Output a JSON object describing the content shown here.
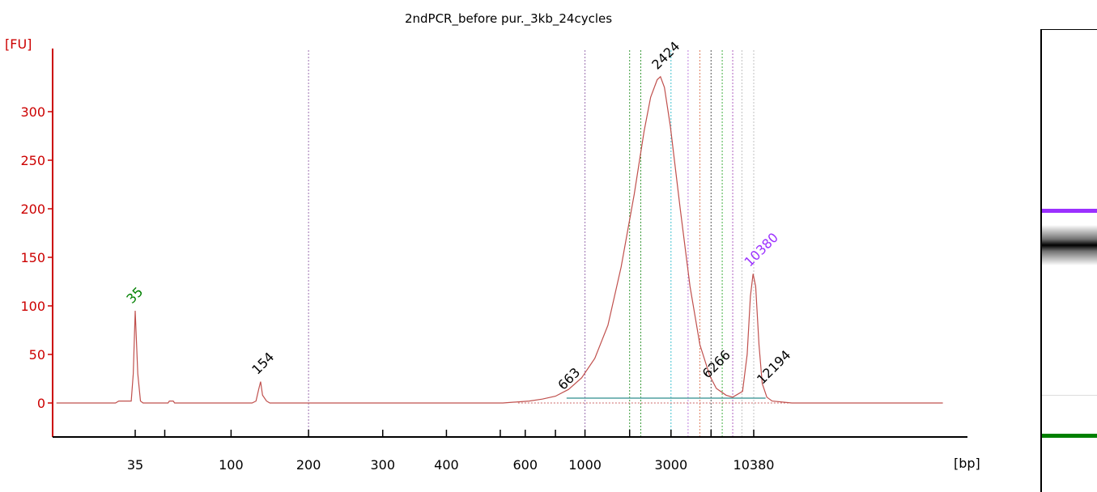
{
  "chart_data": {
    "type": "line",
    "title": "2ndPCR_before pur._3kb_24cycles",
    "ylabel": "[FU]",
    "xlabel": "[bp]",
    "ylim": [
      -35,
      365
    ],
    "yticks": [
      0,
      50,
      100,
      150,
      200,
      250,
      300
    ],
    "xticks": [
      {
        "label": "35",
        "t": 0.0
      },
      {
        "label": "",
        "t": 0.045
      },
      {
        "label": "100",
        "t": 0.146
      },
      {
        "label": "200",
        "t": 0.264
      },
      {
        "label": "300",
        "t": 0.377
      },
      {
        "label": "400",
        "t": 0.474
      },
      {
        "label": "",
        "t": 0.556
      },
      {
        "label": "600",
        "t": 0.594
      },
      {
        "label": "",
        "t": 0.64
      },
      {
        "label": "1000",
        "t": 0.685
      },
      {
        "label": "",
        "t": 0.753
      },
      {
        "label": "3000",
        "t": 0.816
      },
      {
        "label": "",
        "t": 0.877
      },
      {
        "label": "10380",
        "t": 0.942
      }
    ],
    "series": [
      {
        "color": "#c0504d",
        "points": [
          [
            -0.12,
            0
          ],
          [
            -0.03,
            0
          ],
          [
            -0.025,
            2
          ],
          [
            -0.006,
            2
          ],
          [
            -0.003,
            30
          ],
          [
            0.0,
            95
          ],
          [
            0.004,
            30
          ],
          [
            0.008,
            2
          ],
          [
            0.012,
            0
          ],
          [
            0.05,
            0
          ],
          [
            0.052,
            2
          ],
          [
            0.058,
            2
          ],
          [
            0.06,
            0
          ],
          [
            0.178,
            0
          ],
          [
            0.184,
            2
          ],
          [
            0.188,
            14
          ],
          [
            0.191,
            22
          ],
          [
            0.194,
            8
          ],
          [
            0.2,
            2
          ],
          [
            0.205,
            0
          ],
          [
            0.56,
            0
          ],
          [
            0.6,
            2
          ],
          [
            0.62,
            4
          ],
          [
            0.64,
            7
          ],
          [
            0.66,
            14
          ],
          [
            0.68,
            26
          ],
          [
            0.7,
            46
          ],
          [
            0.72,
            80
          ],
          [
            0.74,
            140
          ],
          [
            0.76,
            215
          ],
          [
            0.775,
            280
          ],
          [
            0.785,
            315
          ],
          [
            0.795,
            333
          ],
          [
            0.8,
            336
          ],
          [
            0.806,
            325
          ],
          [
            0.815,
            285
          ],
          [
            0.83,
            200
          ],
          [
            0.845,
            120
          ],
          [
            0.86,
            60
          ],
          [
            0.875,
            28
          ],
          [
            0.885,
            15
          ],
          [
            0.9,
            8
          ],
          [
            0.91,
            6
          ],
          [
            0.925,
            12
          ],
          [
            0.932,
            50
          ],
          [
            0.937,
            110
          ],
          [
            0.941,
            133
          ],
          [
            0.945,
            120
          ],
          [
            0.95,
            60
          ],
          [
            0.955,
            20
          ],
          [
            0.962,
            6
          ],
          [
            0.97,
            2
          ],
          [
            1.0,
            0
          ],
          [
            1.15,
            0
          ],
          [
            1.23,
            0
          ]
        ]
      }
    ],
    "peaks": [
      {
        "label": "35",
        "t": 0.0,
        "y": 95,
        "color": "#008000"
      },
      {
        "label": "154",
        "t": 0.191,
        "y": 22,
        "color": "#000000"
      },
      {
        "label": "663",
        "t": 0.657,
        "y": 6,
        "color": "#000000"
      },
      {
        "label": "2424",
        "t": 0.8,
        "y": 336,
        "color": "#000000"
      },
      {
        "label": "6266",
        "t": 0.877,
        "y": 18,
        "color": "#000000"
      },
      {
        "label": "10380",
        "t": 0.941,
        "y": 133,
        "color": "#9b30ff"
      },
      {
        "label": "12194",
        "t": 0.96,
        "y": 12,
        "color": "#000000"
      }
    ],
    "markers": [
      {
        "t": 0.264,
        "color": "#9b6fb0"
      },
      {
        "t": 0.685,
        "color": "#9b6fb0"
      },
      {
        "t": 0.753,
        "color": "#3a9a3a"
      },
      {
        "t": 0.77,
        "color": "#3a9a3a"
      },
      {
        "t": 0.816,
        "color": "#40c0d0"
      },
      {
        "t": 0.842,
        "color": "#c080e0"
      },
      {
        "t": 0.86,
        "color": "#e08060"
      },
      {
        "t": 0.877,
        "color": "#555555"
      },
      {
        "t": 0.894,
        "color": "#40b040"
      },
      {
        "t": 0.91,
        "color": "#b060c0"
      },
      {
        "t": 0.924,
        "color": "#c0c0c0"
      },
      {
        "t": 0.942,
        "color": "#c0c0c0"
      }
    ],
    "region": {
      "from_t": 0.657,
      "to_t": 0.96,
      "y": 5,
      "color": "#50a0a0"
    },
    "grid": false,
    "gel": {
      "bands": [
        {
          "pos": 0.39,
          "color": "#9b30ff",
          "kind": "marker"
        },
        {
          "pos": 0.465,
          "color": "#000000",
          "kind": "sample"
        },
        {
          "pos": 0.79,
          "color": "#dddddd",
          "kind": "faint"
        },
        {
          "pos": 0.878,
          "color": "#008000",
          "kind": "marker"
        }
      ]
    }
  }
}
